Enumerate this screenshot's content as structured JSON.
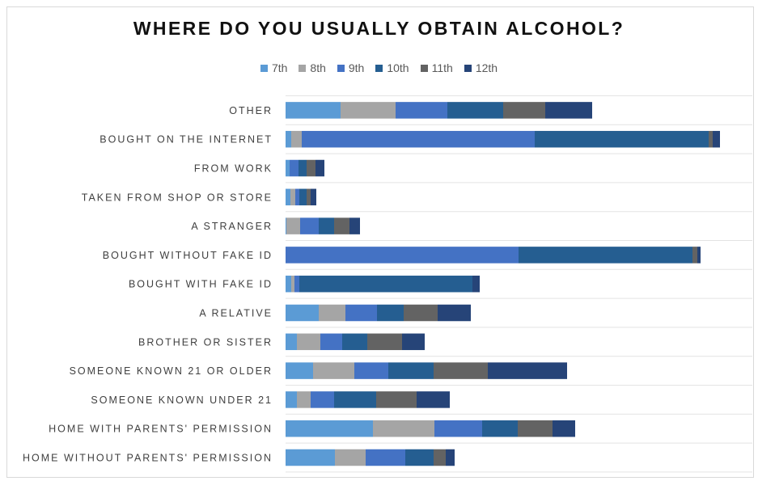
{
  "chart_data": {
    "type": "bar",
    "orientation": "horizontal",
    "stacked": true,
    "title": "WHERE DO YOU USUALLY OBTAIN ALCOHOL?",
    "categories": [
      "OTHER",
      "BOUGHT ON THE INTERNET",
      "FROM WORK",
      "TAKEN FROM SHOP OR STORE",
      "A STRANGER",
      "BOUGHT WITHOUT FAKE ID",
      "BOUGHT WITH FAKE ID",
      "A RELATIVE",
      "BROTHER OR SISTER",
      "SOMEONE KNOWN 21 OR OLDER",
      "SOMEONE KNOWN UNDER 21",
      "HOME WITH PARENTS' PERMISSION",
      "HOME WITHOUT PARENTS' PERMISSION"
    ],
    "series": [
      {
        "name": "7th",
        "color": "#5b9bd5",
        "values": [
          68,
          7,
          5,
          6,
          1,
          0,
          7,
          41,
          14,
          34,
          14,
          108,
          61
        ]
      },
      {
        "name": "8th",
        "color": "#a5a5a5",
        "values": [
          68,
          13,
          0,
          6,
          17,
          0,
          4,
          33,
          29,
          51,
          17,
          76,
          38
        ]
      },
      {
        "name": "9th",
        "color": "#4472c4",
        "values": [
          64,
          288,
          11,
          5,
          23,
          288,
          6,
          39,
          27,
          42,
          29,
          59,
          49
        ]
      },
      {
        "name": "10th",
        "color": "#255e91",
        "values": [
          69,
          215,
          10,
          9,
          19,
          215,
          214,
          33,
          31,
          56,
          52,
          44,
          35
        ]
      },
      {
        "name": "11th",
        "color": "#636363",
        "values": [
          52,
          5,
          11,
          5,
          19,
          6,
          0,
          42,
          43,
          67,
          50,
          43,
          15
        ]
      },
      {
        "name": "12th",
        "color": "#264478",
        "values": [
          58,
          9,
          11,
          7,
          13,
          4,
          9,
          41,
          28,
          98,
          41,
          28,
          11
        ]
      }
    ],
    "grid": "horizontal lines",
    "legend_position": "top"
  }
}
